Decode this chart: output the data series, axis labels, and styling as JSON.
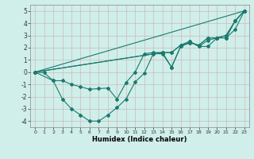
{
  "xlabel": "Humidex (Indice chaleur)",
  "bg_color": "#d0eeea",
  "line_color": "#1a7a6e",
  "grid_color": "#c8b0b0",
  "xlim": [
    -0.5,
    23.5
  ],
  "ylim": [
    -4.5,
    5.5
  ],
  "xticks": [
    0,
    1,
    2,
    3,
    4,
    5,
    6,
    7,
    8,
    9,
    10,
    11,
    12,
    13,
    14,
    15,
    16,
    17,
    18,
    19,
    20,
    21,
    22,
    23
  ],
  "yticks": [
    -4,
    -3,
    -2,
    -1,
    0,
    1,
    2,
    3,
    4,
    5
  ],
  "series": [
    {
      "x": [
        0,
        1,
        2,
        3,
        4,
        5,
        6,
        7,
        8,
        9,
        10,
        11,
        12,
        13,
        14,
        15,
        16,
        17,
        18,
        19,
        20,
        21,
        22,
        23
      ],
      "y": [
        0,
        -0.05,
        -0.7,
        -2.2,
        -3.0,
        -3.5,
        -4.0,
        -4.0,
        -3.5,
        -2.9,
        -2.2,
        -0.8,
        -0.1,
        1.5,
        1.5,
        0.4,
        2.1,
        2.4,
        2.2,
        2.8,
        2.8,
        3.0,
        4.2,
        5.0
      ]
    },
    {
      "x": [
        0,
        23
      ],
      "y": [
        0,
        5.0
      ]
    },
    {
      "x": [
        0,
        2,
        3,
        4,
        5,
        6,
        7,
        8,
        9,
        10,
        11,
        12,
        13,
        14,
        15,
        16,
        17,
        18,
        19,
        20,
        21,
        22,
        23
      ],
      "y": [
        0,
        -0.7,
        -0.7,
        -1.0,
        -1.2,
        -1.4,
        -1.35,
        -1.3,
        -2.2,
        -0.85,
        0.0,
        1.5,
        1.6,
        1.6,
        1.6,
        2.2,
        2.5,
        2.1,
        2.1,
        2.8,
        2.8,
        3.5,
        5.0
      ]
    },
    {
      "x": [
        0,
        14,
        15,
        16,
        17,
        18,
        19,
        20,
        21,
        22,
        23
      ],
      "y": [
        0,
        1.6,
        1.6,
        2.2,
        2.5,
        2.1,
        2.6,
        2.8,
        2.8,
        4.2,
        5.0
      ]
    },
    {
      "x": [
        0,
        14,
        15,
        16,
        17,
        18,
        19,
        20,
        21,
        22,
        23
      ],
      "y": [
        0,
        1.6,
        0.4,
        2.1,
        2.4,
        2.2,
        2.8,
        2.8,
        3.0,
        4.2,
        5.0
      ]
    }
  ]
}
